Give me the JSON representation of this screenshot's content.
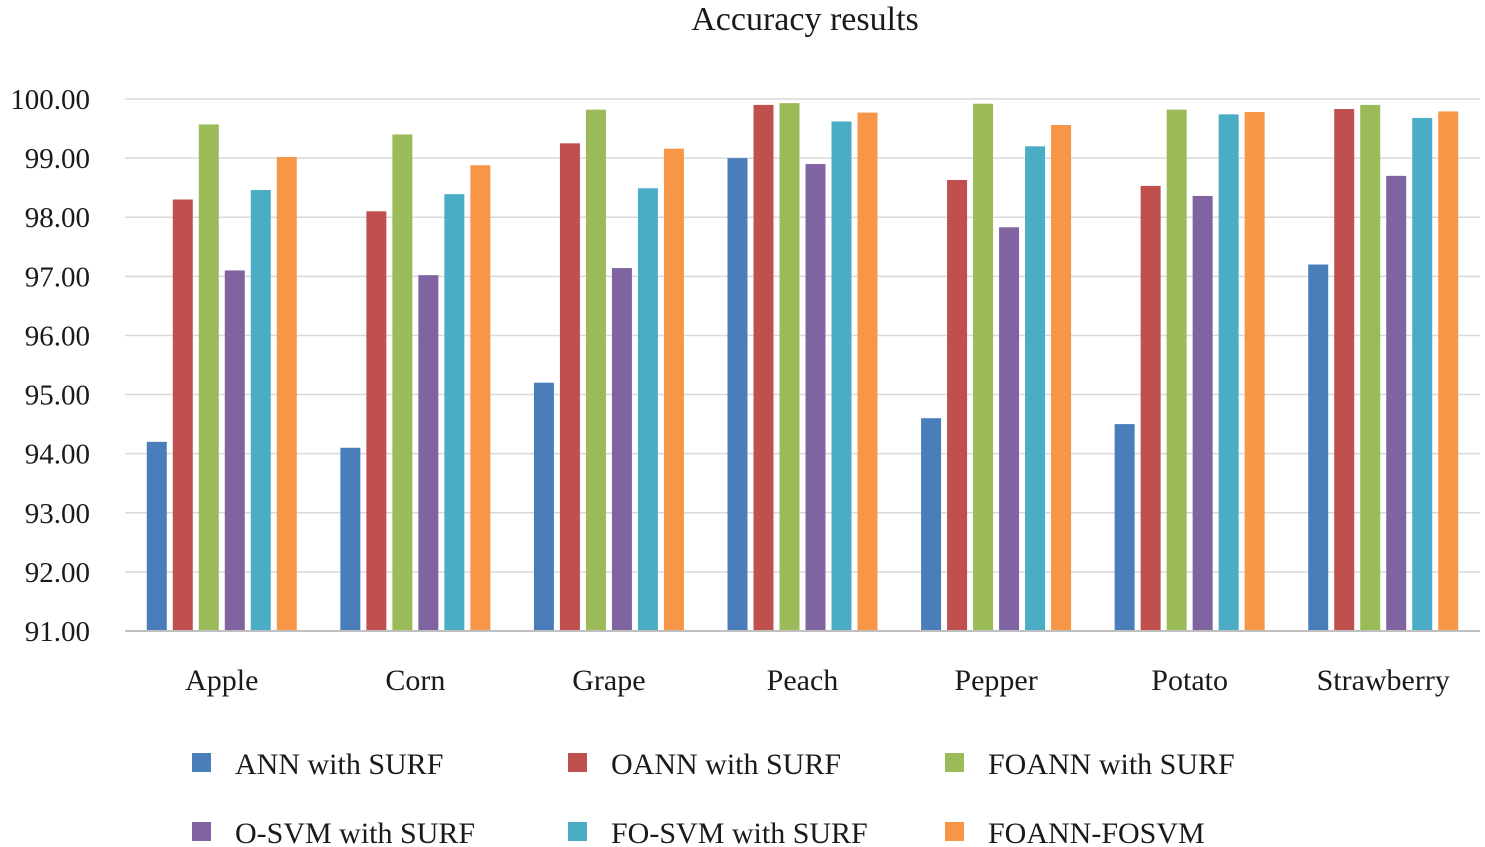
{
  "chart_data": {
    "type": "bar",
    "title": "Accuracy results",
    "xlabel": "",
    "ylabel": "",
    "ylim": [
      91,
      100
    ],
    "yticks": [
      "91.00",
      "92.00",
      "93.00",
      "94.00",
      "95.00",
      "96.00",
      "97.00",
      "98.00",
      "99.00",
      "100.00"
    ],
    "grid": true,
    "legend_position": "bottom",
    "categories": [
      "Apple",
      "Corn",
      "Grape",
      "Peach",
      "Pepper",
      "Potato",
      "Strawberry"
    ],
    "series": [
      {
        "name": "ANN with SURF",
        "color": "#4a7ebb",
        "values": [
          94.2,
          94.1,
          95.2,
          99.0,
          94.6,
          94.5,
          97.2
        ]
      },
      {
        "name": "OANN with SURF",
        "color": "#c0504d",
        "values": [
          98.3,
          98.1,
          99.25,
          99.9,
          98.63,
          98.53,
          99.83
        ]
      },
      {
        "name": "FOANN with SURF",
        "color": "#9bbb59",
        "values": [
          99.57,
          99.4,
          99.82,
          99.93,
          99.92,
          99.82,
          99.9
        ]
      },
      {
        "name": "O-SVM with SURF",
        "color": "#8064a2",
        "values": [
          97.1,
          97.02,
          97.14,
          98.9,
          97.83,
          98.36,
          98.7
        ]
      },
      {
        "name": "FO-SVM with SURF",
        "color": "#4bacc6",
        "values": [
          98.46,
          98.39,
          98.49,
          99.62,
          99.2,
          99.74,
          99.68
        ]
      },
      {
        "name": "FOANN-FOSVM",
        "color": "#f79646",
        "values": [
          99.02,
          98.88,
          99.16,
          99.77,
          99.56,
          99.78,
          99.79
        ]
      }
    ]
  }
}
